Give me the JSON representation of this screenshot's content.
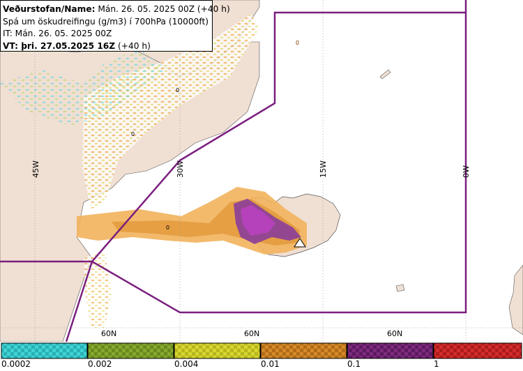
{
  "header": {
    "line1_bold": "Veðurstofan/Name:",
    "line1_rest": " Mán. 26. 05. 2025 00Z (+40 h)",
    "line2": "Spá um öskudreifingu (g/m3) í 700hPa (10000ft)",
    "line3": "IT: Mán. 26. 05. 2025 00Z",
    "line4_bold": "VT: þri. 27.05.2025 16Z",
    "line4_rest": " (+40 h)"
  },
  "map": {
    "meridian_labels": [
      "45W",
      "30W",
      "15W",
      "0W"
    ],
    "parallel_labels": [
      "60N",
      "60N",
      "60N"
    ],
    "contour_labels": [
      "0",
      "0",
      "0",
      "0"
    ],
    "colors": {
      "sea": "#ffffff",
      "land": "#f0dfd3",
      "boundary": "#7b1f7f",
      "ash_low": "#f2b35c",
      "ash_mid": "#e39a3c",
      "ash_high": "#8a3d9a",
      "ash_top": "#c040c8",
      "trace_cyan": "#5fd6e0",
      "trace_green": "#b8d86a",
      "trace_yellow": "#e6e07a"
    }
  },
  "legend": {
    "labels": [
      "0.0002",
      "0.002",
      "0.004",
      "0.01",
      "0.1",
      "1"
    ],
    "colors": [
      "#3fd3d3",
      "#86a82e",
      "#cdcd2c",
      "#d5892a",
      "#7d2a7d",
      "#d32c2c"
    ]
  }
}
